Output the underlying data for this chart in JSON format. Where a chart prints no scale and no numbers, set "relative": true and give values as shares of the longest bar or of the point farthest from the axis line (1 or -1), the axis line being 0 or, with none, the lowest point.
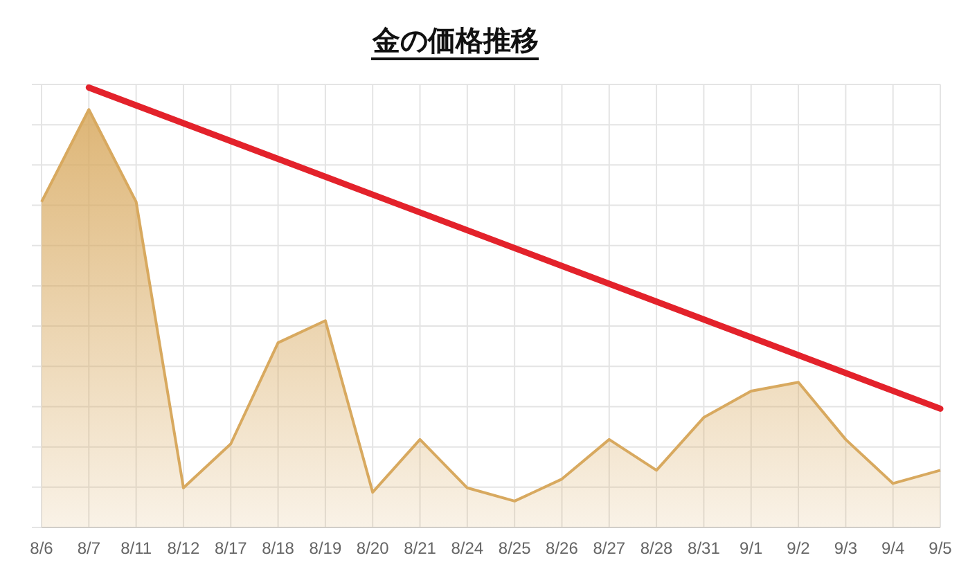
{
  "chart_data": {
    "type": "area",
    "title": "金の価格推移",
    "categories": [
      "8/6",
      "8/7",
      "8/11",
      "8/12",
      "8/17",
      "8/18",
      "8/19",
      "8/20",
      "8/21",
      "8/24",
      "8/25",
      "8/26",
      "8/27",
      "8/28",
      "8/31",
      "9/1",
      "9/2",
      "9/3",
      "9/4",
      "9/5"
    ],
    "relative": true,
    "grid": true,
    "tick_labels": "x",
    "series": [
      {
        "color": "#d8a95f",
        "values": [
          0.74,
          0.95,
          0.74,
          0.09,
          0.19,
          0.42,
          0.47,
          0.08,
          0.2,
          0.09,
          0.06,
          0.11,
          0.2,
          0.13,
          0.25,
          0.31,
          0.33,
          0.2,
          0.1,
          0.13
        ]
      },
      {
        "type": "line",
        "color": "#e3222b",
        "line_style": "solid",
        "x": [
          "8/7",
          "9/5"
        ],
        "values": [
          1,
          0.27
        ]
      }
    ]
  }
}
